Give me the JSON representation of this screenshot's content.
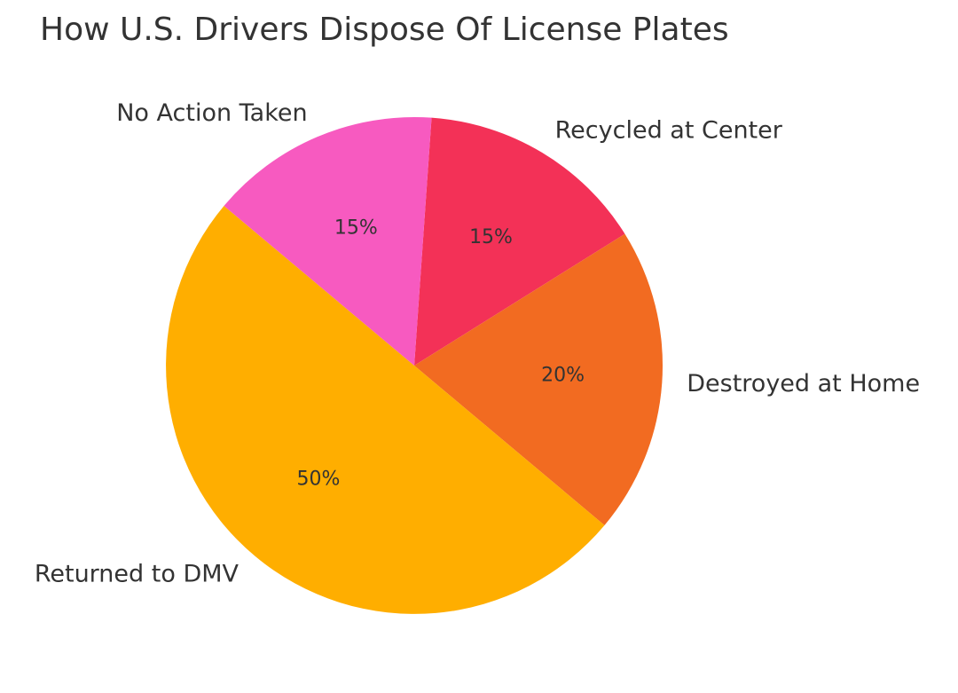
{
  "chart_data": {
    "type": "pie",
    "title": "How U.S. Drivers Dispose Of License Plates",
    "categories": [
      "Recycled at Center",
      "Destroyed at Home",
      "Returned to DMV",
      "No Action Taken"
    ],
    "values": [
      15,
      20,
      50,
      15
    ],
    "value_labels": [
      "15%",
      "20%",
      "50%",
      "15%"
    ],
    "colors": [
      "#f33157",
      "#f26b21",
      "#ffae00",
      "#f75ac0"
    ]
  }
}
